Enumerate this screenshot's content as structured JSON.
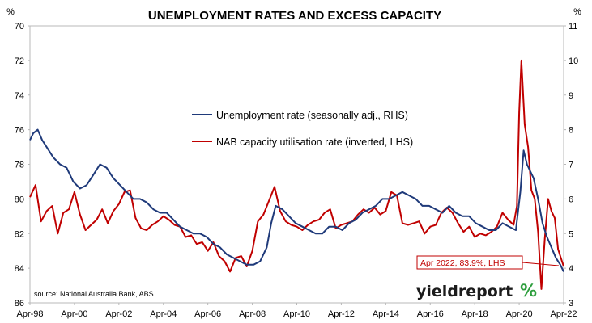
{
  "chart_data": {
    "type": "line",
    "title": "UNEMPLOYMENT RATES AND EXCESS CAPACITY",
    "left_axis": {
      "unit": "%",
      "ylim": [
        70,
        86
      ],
      "reversed": true,
      "ticks": [
        "70",
        "72",
        "74",
        "76",
        "78",
        "80",
        "82",
        "84",
        "86"
      ]
    },
    "right_axis": {
      "unit": "%",
      "ylim": [
        3,
        11
      ],
      "ticks": [
        "3",
        "4",
        "5",
        "6",
        "7",
        "8",
        "9",
        "10",
        "11"
      ]
    },
    "x_ticks": [
      "Apr-98",
      "Apr-00",
      "Apr-02",
      "Apr-04",
      "Apr-06",
      "Apr-08",
      "Apr-10",
      "Apr-12",
      "Apr-14",
      "Apr-16",
      "Apr-18",
      "Apr-20",
      "Apr-22"
    ],
    "x_range": [
      1998.25,
      2022.25
    ],
    "grid": false,
    "legend_position": "upper-middle",
    "series": [
      {
        "name": "Unemployment rate (seasonally adj., RHS)",
        "axis": "right",
        "color": "#1f3a7a",
        "x": [
          1998.25,
          1998.4,
          1998.6,
          1998.8,
          1999.0,
          1999.3,
          1999.6,
          1999.9,
          2000.2,
          2000.5,
          2000.8,
          2001.1,
          2001.4,
          2001.7,
          2002.0,
          2002.3,
          2002.6,
          2002.9,
          2003.2,
          2003.5,
          2003.8,
          2004.1,
          2004.4,
          2004.7,
          2005.0,
          2005.3,
          2005.6,
          2005.9,
          2006.2,
          2006.5,
          2006.8,
          2007.1,
          2007.4,
          2007.7,
          2008.0,
          2008.3,
          2008.6,
          2008.9,
          2009.1,
          2009.3,
          2009.6,
          2009.9,
          2010.2,
          2010.5,
          2010.8,
          2011.1,
          2011.4,
          2011.7,
          2012.0,
          2012.3,
          2012.6,
          2012.9,
          2013.2,
          2013.5,
          2013.8,
          2014.1,
          2014.4,
          2014.7,
          2015.0,
          2015.3,
          2015.6,
          2015.9,
          2016.2,
          2016.5,
          2016.8,
          2017.1,
          2017.4,
          2017.7,
          2018.0,
          2018.3,
          2018.6,
          2018.9,
          2019.2,
          2019.5,
          2019.8,
          2020.1,
          2020.3,
          2020.45,
          2020.6,
          2020.75,
          2020.9,
          2021.1,
          2021.3,
          2021.5,
          2021.7,
          2021.9,
          2022.1,
          2022.25
        ],
        "values": [
          7.7,
          7.9,
          8.0,
          7.7,
          7.5,
          7.2,
          7.0,
          6.9,
          6.5,
          6.3,
          6.4,
          6.7,
          7.0,
          6.9,
          6.6,
          6.4,
          6.2,
          6.0,
          6.0,
          5.9,
          5.7,
          5.6,
          5.6,
          5.4,
          5.2,
          5.1,
          5.0,
          5.0,
          4.9,
          4.7,
          4.6,
          4.4,
          4.3,
          4.2,
          4.1,
          4.1,
          4.2,
          4.6,
          5.3,
          5.8,
          5.7,
          5.5,
          5.3,
          5.2,
          5.1,
          5.0,
          5.0,
          5.2,
          5.2,
          5.1,
          5.3,
          5.4,
          5.6,
          5.7,
          5.8,
          6.0,
          6.0,
          6.1,
          6.2,
          6.1,
          6.0,
          5.8,
          5.8,
          5.7,
          5.6,
          5.8,
          5.6,
          5.5,
          5.5,
          5.3,
          5.2,
          5.1,
          5.1,
          5.3,
          5.2,
          5.1,
          6.2,
          7.4,
          7.0,
          6.8,
          6.6,
          6.0,
          5.3,
          4.9,
          4.6,
          4.3,
          4.1,
          3.9
        ]
      },
      {
        "name": "NAB capacity utilisation rate (inverted, LHS)",
        "axis": "left",
        "color": "#c00000",
        "x": [
          1998.25,
          1998.5,
          1998.75,
          1999.0,
          1999.25,
          1999.5,
          1999.75,
          2000.0,
          2000.25,
          2000.5,
          2000.75,
          2001.0,
          2001.25,
          2001.5,
          2001.75,
          2002.0,
          2002.25,
          2002.5,
          2002.75,
          2003.0,
          2003.25,
          2003.5,
          2003.75,
          2004.0,
          2004.25,
          2004.5,
          2004.75,
          2005.0,
          2005.25,
          2005.5,
          2005.75,
          2006.0,
          2006.25,
          2006.5,
          2006.75,
          2007.0,
          2007.25,
          2007.5,
          2007.75,
          2008.0,
          2008.25,
          2008.5,
          2008.75,
          2009.0,
          2009.25,
          2009.5,
          2009.75,
          2010.0,
          2010.25,
          2010.5,
          2010.75,
          2011.0,
          2011.25,
          2011.5,
          2011.75,
          2012.0,
          2012.25,
          2012.5,
          2012.75,
          2013.0,
          2013.25,
          2013.5,
          2013.75,
          2014.0,
          2014.25,
          2014.5,
          2014.75,
          2015.0,
          2015.25,
          2015.5,
          2015.75,
          2016.0,
          2016.25,
          2016.5,
          2016.75,
          2017.0,
          2017.25,
          2017.5,
          2017.75,
          2018.0,
          2018.25,
          2018.5,
          2018.75,
          2019.0,
          2019.25,
          2019.5,
          2019.75,
          2020.0,
          2020.15,
          2020.25,
          2020.35,
          2020.5,
          2020.65,
          2020.8,
          2020.95,
          2021.1,
          2021.25,
          2021.4,
          2021.55,
          2021.7,
          2021.85,
          2022.0,
          2022.25
        ],
        "values": [
          79.9,
          79.2,
          81.3,
          80.7,
          80.4,
          82.0,
          80.8,
          80.6,
          79.6,
          80.9,
          81.8,
          81.5,
          81.2,
          80.6,
          81.4,
          80.7,
          80.3,
          79.6,
          79.5,
          81.1,
          81.7,
          81.8,
          81.5,
          81.3,
          81.0,
          81.2,
          81.5,
          81.6,
          82.2,
          82.1,
          82.6,
          82.5,
          83.0,
          82.5,
          83.3,
          83.6,
          84.2,
          83.4,
          83.3,
          83.9,
          83.0,
          81.3,
          80.9,
          80.1,
          79.3,
          80.7,
          81.3,
          81.5,
          81.6,
          81.8,
          81.5,
          81.3,
          81.2,
          80.8,
          80.6,
          81.7,
          81.5,
          81.4,
          81.3,
          80.9,
          80.6,
          80.8,
          80.5,
          80.9,
          80.7,
          79.6,
          79.8,
          81.4,
          81.5,
          81.4,
          81.3,
          82.0,
          81.6,
          81.5,
          80.8,
          80.5,
          80.8,
          81.4,
          81.9,
          81.6,
          82.2,
          82.0,
          82.1,
          81.9,
          81.6,
          80.8,
          81.2,
          81.5,
          80.4,
          75.0,
          72.0,
          75.7,
          77.0,
          79.5,
          80.0,
          81.9,
          85.2,
          82.3,
          80.0,
          80.7,
          81.1,
          82.9,
          83.9
        ]
      }
    ],
    "annotation": "Apr 2022, 83.9%, LHS",
    "source": "source: National Australia Bank, ABS",
    "colors": {
      "frame": "#b8b8b8",
      "annotation": "#c00000",
      "logo_accent": "#2e9e3e"
    }
  },
  "logo": {
    "word": "yieldreport",
    "symbol": "%"
  }
}
